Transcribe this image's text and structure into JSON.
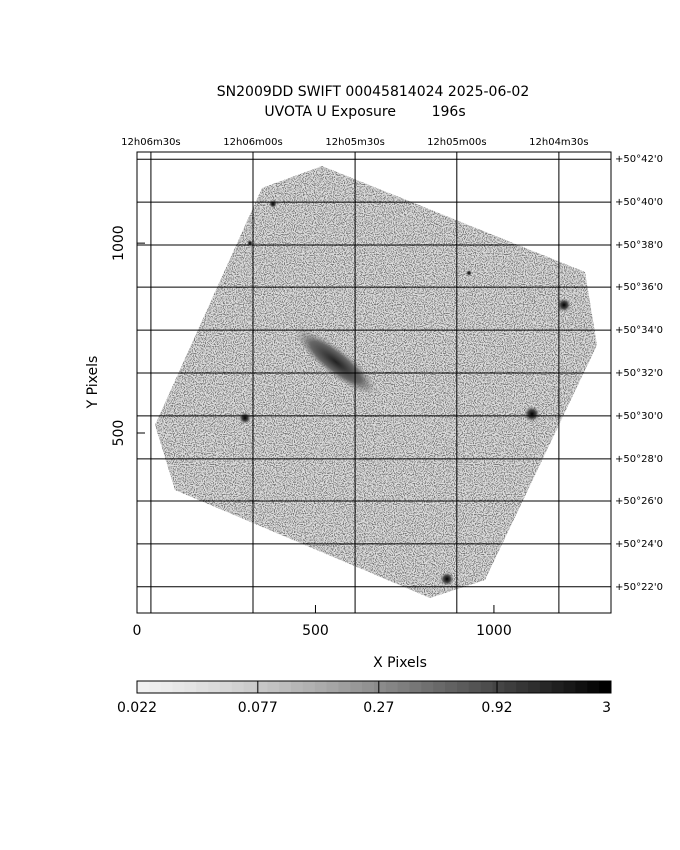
{
  "chart_data": {
    "type": "image",
    "title": "SN2009DD SWIFT 00045814024 2025-06-02",
    "subtitle": "UVOTA U Exposure        196s",
    "xlabel": "X Pixels",
    "ylabel": "Y Pixels",
    "xlim": [
      0,
      1328
    ],
    "ylim": [
      26,
      1240
    ],
    "xticks": [
      0,
      500,
      1000
    ],
    "yticks": [
      500,
      1000
    ],
    "ra_ticks": [
      {
        "value": 39,
        "label": "12h06m30s"
      },
      {
        "value": 325,
        "label": "12h06m00s"
      },
      {
        "value": 611,
        "label": "12h05m30s"
      },
      {
        "value": 896,
        "label": "12h05m00s"
      },
      {
        "value": 1182,
        "label": "12h04m30s"
      }
    ],
    "dec_ticks": [
      {
        "value": 1221,
        "label": "+50°42'0"
      },
      {
        "value": 1108,
        "label": "+50°40'0"
      },
      {
        "value": 995,
        "label": "+50°38'0"
      },
      {
        "value": 884,
        "label": "+50°36'0"
      },
      {
        "value": 771,
        "label": "+50°34'0"
      },
      {
        "value": 658,
        "label": "+50°32'0"
      },
      {
        "value": 545,
        "label": "+50°30'0"
      },
      {
        "value": 432,
        "label": "+50°28'0"
      },
      {
        "value": 321,
        "label": "+50°26'0"
      },
      {
        "value": 208,
        "label": "+50°24'0"
      },
      {
        "value": 95,
        "label": "+50°22'0"
      }
    ],
    "grid": true,
    "colorbar": {
      "lim": [
        0.022,
        3
      ],
      "log": true,
      "ticks": [
        0.022,
        0.077,
        0.27,
        0.92,
        3
      ]
    }
  }
}
